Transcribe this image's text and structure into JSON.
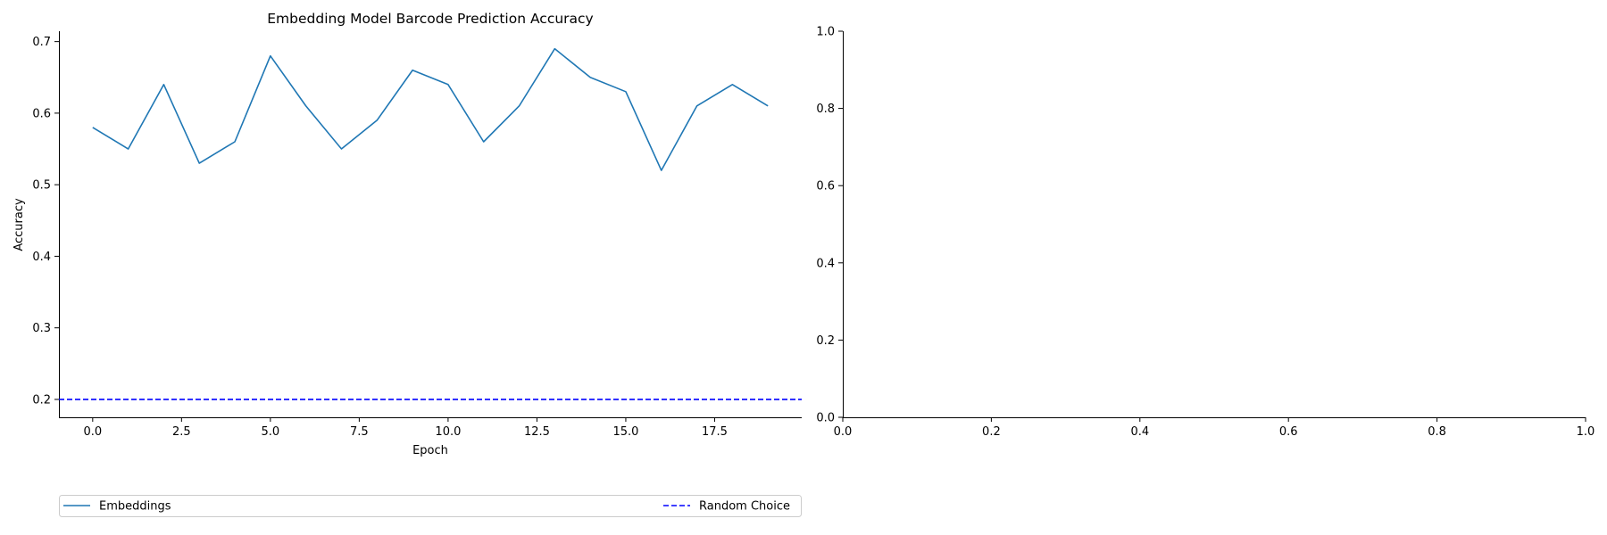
{
  "chart_data": [
    {
      "type": "line",
      "title": "Embedding Model Barcode Prediction Accuracy",
      "xlabel": "Epoch",
      "ylabel": "Accuracy",
      "xlim": [
        -0.95,
        19.95
      ],
      "ylim": [
        0.175,
        0.7145
      ],
      "xticks": [
        0.0,
        2.5,
        5.0,
        7.5,
        10.0,
        12.5,
        15.0,
        17.5
      ],
      "xtick_labels": [
        "0.0",
        "2.5",
        "5.0",
        "7.5",
        "10.0",
        "12.5",
        "15.0",
        "17.5"
      ],
      "yticks": [
        0.2,
        0.3,
        0.4,
        0.5,
        0.6,
        0.7
      ],
      "ytick_labels": [
        "0.2",
        "0.3",
        "0.4",
        "0.5",
        "0.6",
        "0.7"
      ],
      "grid": false,
      "x": [
        0,
        1,
        2,
        3,
        4,
        5,
        6,
        7,
        8,
        9,
        10,
        11,
        12,
        13,
        14,
        15,
        16,
        17,
        18,
        19
      ],
      "series": [
        {
          "name": "Embeddings",
          "color": "#1f77b4",
          "style": "solid",
          "values": [
            0.58,
            0.55,
            0.64,
            0.53,
            0.56,
            0.68,
            0.61,
            0.55,
            0.59,
            0.66,
            0.64,
            0.56,
            0.61,
            0.69,
            0.65,
            0.63,
            0.52,
            0.61,
            0.64,
            0.61
          ]
        },
        {
          "name": "Random Choice",
          "color": "#0000ff",
          "style": "dashed",
          "type": "hline",
          "value": 0.2
        }
      ],
      "legend": {
        "placement": "below",
        "entries": [
          "Embeddings",
          "Random Choice"
        ]
      }
    },
    {
      "type": "line",
      "title": "",
      "xlabel": "",
      "ylabel": "",
      "xlim": [
        0.0,
        1.0
      ],
      "ylim": [
        0.0,
        1.0
      ],
      "xticks": [
        0.0,
        0.2,
        0.4,
        0.6,
        0.8,
        1.0
      ],
      "xtick_labels": [
        "0.0",
        "0.2",
        "0.4",
        "0.6",
        "0.8",
        "1.0"
      ],
      "yticks": [
        0.0,
        0.2,
        0.4,
        0.6,
        0.8,
        1.0
      ],
      "ytick_labels": [
        "0.0",
        "0.2",
        "0.4",
        "0.6",
        "0.8",
        "1.0"
      ],
      "grid": false,
      "series": []
    }
  ]
}
